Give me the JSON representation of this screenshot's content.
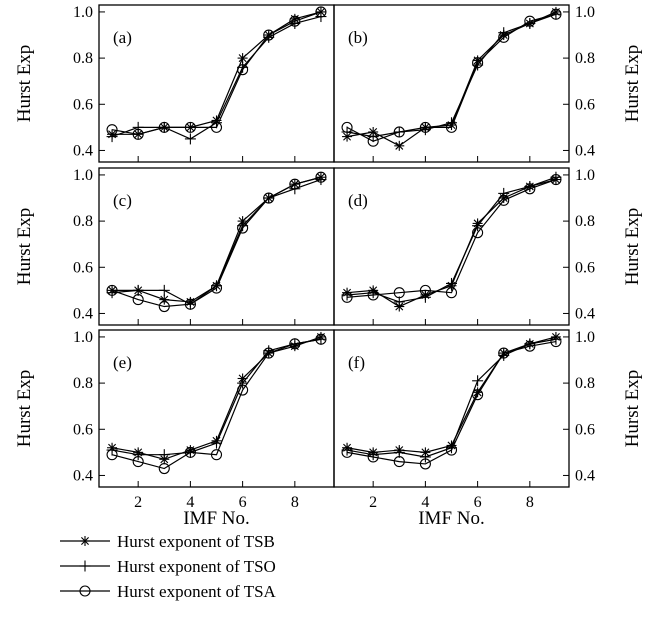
{
  "chart_data": {
    "type": "line",
    "xlabel": "IMF No.",
    "ylabel": "Hurst Exp",
    "xlim": [
      0.5,
      9.5
    ],
    "ylim": [
      0.35,
      1.03
    ],
    "xticks": [
      2,
      4,
      6,
      8
    ],
    "yticks": [
      0.4,
      0.6,
      0.8,
      1.0
    ],
    "xtick_labels": [
      "2",
      "4",
      "6",
      "8"
    ],
    "ytick_labels": [
      "0.4",
      "0.6",
      "0.8",
      "1.0"
    ],
    "grid": false,
    "legend_position": "bottom-left",
    "legend": [
      {
        "label": "Hurst exponent of TSB",
        "marker": "star"
      },
      {
        "label": "Hurst exponent of TSO",
        "marker": "plus"
      },
      {
        "label": "Hurst exponent of TSA",
        "marker": "circle"
      }
    ],
    "x": [
      1,
      2,
      3,
      4,
      5,
      6,
      7,
      8,
      9
    ],
    "panels": [
      {
        "label": "(a)",
        "series": [
          {
            "name": "Hurst exponent of TSB",
            "values": [
              0.47,
              0.47,
              0.5,
              0.5,
              0.53,
              0.8,
              0.9,
              0.97,
              1.0
            ]
          },
          {
            "name": "Hurst exponent of TSO",
            "values": [
              0.46,
              0.5,
              0.5,
              0.45,
              0.52,
              0.76,
              0.89,
              0.95,
              0.98
            ]
          },
          {
            "name": "Hurst exponent of TSA",
            "values": [
              0.49,
              0.47,
              0.5,
              0.5,
              0.5,
              0.75,
              0.9,
              0.96,
              1.0
            ]
          }
        ]
      },
      {
        "label": "(b)",
        "series": [
          {
            "name": "Hurst exponent of TSB",
            "values": [
              0.46,
              0.48,
              0.42,
              0.5,
              0.51,
              0.79,
              0.9,
              0.95,
              1.0
            ]
          },
          {
            "name": "Hurst exponent of TSO",
            "values": [
              0.48,
              0.46,
              0.48,
              0.49,
              0.52,
              0.77,
              0.91,
              0.95,
              0.99
            ]
          },
          {
            "name": "Hurst exponent of TSA",
            "values": [
              0.5,
              0.44,
              0.48,
              0.5,
              0.5,
              0.78,
              0.89,
              0.96,
              0.99
            ]
          }
        ]
      },
      {
        "label": "(c)",
        "series": [
          {
            "name": "Hurst exponent of TSB",
            "values": [
              0.5,
              0.5,
              0.46,
              0.45,
              0.52,
              0.8,
              0.9,
              0.96,
              0.99
            ]
          },
          {
            "name": "Hurst exponent of TSO",
            "values": [
              0.49,
              0.5,
              0.5,
              0.44,
              0.52,
              0.78,
              0.9,
              0.94,
              0.98
            ]
          },
          {
            "name": "Hurst exponent of TSA",
            "values": [
              0.5,
              0.46,
              0.43,
              0.44,
              0.51,
              0.77,
              0.9,
              0.96,
              0.99
            ]
          }
        ]
      },
      {
        "label": "(d)",
        "series": [
          {
            "name": "Hurst exponent of TSB",
            "values": [
              0.49,
              0.5,
              0.43,
              0.48,
              0.52,
              0.79,
              0.9,
              0.95,
              0.98
            ]
          },
          {
            "name": "Hurst exponent of TSO",
            "values": [
              0.48,
              0.49,
              0.45,
              0.47,
              0.53,
              0.78,
              0.92,
              0.95,
              0.99
            ]
          },
          {
            "name": "Hurst exponent of TSA",
            "values": [
              0.47,
              0.48,
              0.49,
              0.5,
              0.49,
              0.75,
              0.89,
              0.94,
              0.98
            ]
          }
        ]
      },
      {
        "label": "(e)",
        "series": [
          {
            "name": "Hurst exponent of TSB",
            "values": [
              0.52,
              0.5,
              0.47,
              0.51,
              0.55,
              0.82,
              0.93,
              0.96,
              1.0
            ]
          },
          {
            "name": "Hurst exponent of TSO",
            "values": [
              0.51,
              0.49,
              0.49,
              0.5,
              0.54,
              0.8,
              0.94,
              0.97,
              0.99
            ]
          },
          {
            "name": "Hurst exponent of TSA",
            "values": [
              0.49,
              0.46,
              0.43,
              0.5,
              0.49,
              0.77,
              0.93,
              0.97,
              0.99
            ]
          }
        ]
      },
      {
        "label": "(f)",
        "series": [
          {
            "name": "Hurst exponent of TSB",
            "values": [
              0.52,
              0.5,
              0.51,
              0.5,
              0.53,
              0.76,
              0.93,
              0.97,
              1.0
            ]
          },
          {
            "name": "Hurst exponent of TSO",
            "values": [
              0.51,
              0.49,
              0.5,
              0.48,
              0.52,
              0.81,
              0.92,
              0.97,
              0.99
            ]
          },
          {
            "name": "Hurst exponent of TSA",
            "values": [
              0.5,
              0.48,
              0.46,
              0.45,
              0.51,
              0.75,
              0.93,
              0.96,
              0.98
            ]
          }
        ]
      }
    ]
  }
}
